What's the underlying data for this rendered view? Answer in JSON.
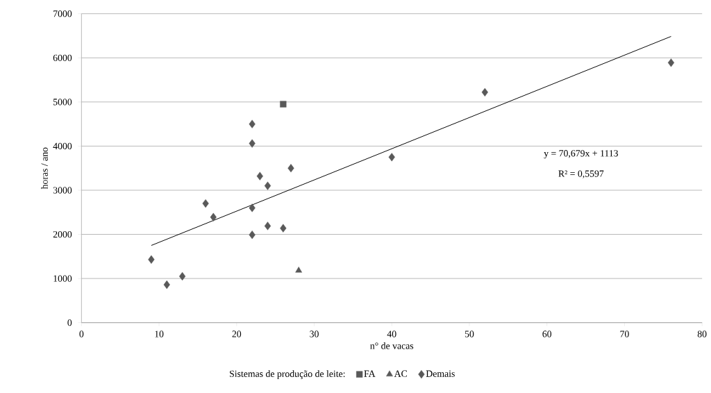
{
  "chart_data": {
    "type": "scatter",
    "xlabel": "n° de vacas",
    "ylabel": "horas / ano",
    "legend_title": "Sistemas de produção de leite:",
    "xlim": [
      0,
      80
    ],
    "xticks": [
      0,
      10,
      20,
      30,
      40,
      50,
      60,
      70,
      80
    ],
    "ylim": [
      0,
      7000
    ],
    "yticks": [
      0,
      1000,
      2000,
      3000,
      4000,
      5000,
      6000,
      7000
    ],
    "grid": "y",
    "legend": "bottom",
    "series": [
      {
        "name": "FA",
        "color": "#595959",
        "marker": "square",
        "x": [
          26
        ],
        "values": [
          4950
        ]
      },
      {
        "name": "AC",
        "color": "#595959",
        "marker": "triangle",
        "x": [
          28
        ],
        "values": [
          1180
        ]
      },
      {
        "name": "Demais",
        "color": "#595959",
        "marker": "diamond",
        "x": [
          9,
          11,
          13,
          16,
          17,
          22,
          22,
          22,
          22,
          23,
          24,
          24,
          26,
          27,
          40,
          52,
          76
        ],
        "values": [
          1430,
          860,
          1050,
          2700,
          2390,
          4500,
          4060,
          2600,
          1990,
          3320,
          3100,
          2190,
          2140,
          3500,
          3750,
          5220,
          5890
        ]
      },
      {
        "type": "line",
        "color": "#000000",
        "line_style": "solid",
        "x": [
          9,
          76
        ],
        "values": [
          1749,
          6485
        ]
      }
    ],
    "annotations": [
      "y = 70,679x  + 1113",
      "R² = 0,5597"
    ]
  }
}
